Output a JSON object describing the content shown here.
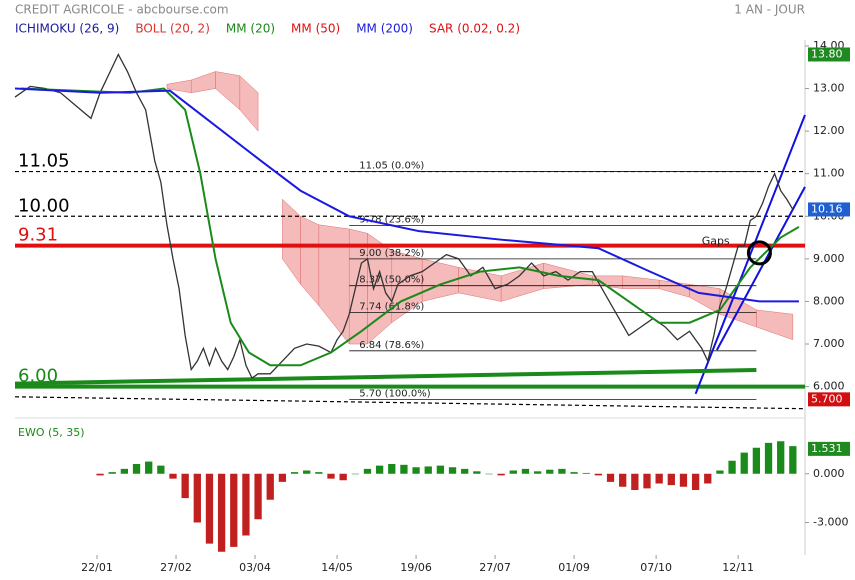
{
  "chart_data": {
    "type": "line",
    "title": "CREDIT AGRICOLE - abcbourse.com",
    "subtitle": "1 AN - JOUR",
    "xlim": [
      0,
      260
    ],
    "xticks": [
      {
        "value": 27,
        "label": "22/01"
      },
      {
        "value": 53,
        "label": "27/02"
      },
      {
        "value": 79,
        "label": "03/04"
      },
      {
        "value": 106,
        "label": "14/05"
      },
      {
        "value": 132,
        "label": "19/06"
      },
      {
        "value": 158,
        "label": "27/07"
      },
      {
        "value": 184,
        "label": "01/09"
      },
      {
        "value": 211,
        "label": "07/10"
      },
      {
        "value": 238,
        "label": "12/11"
      }
    ],
    "ylim": [
      5.45,
      14.14
    ],
    "yticks": [
      {
        "value": 14,
        "label": "14.00"
      },
      {
        "value": 13,
        "label": "13.00"
      },
      {
        "value": 12,
        "label": "12.00"
      },
      {
        "value": 11,
        "label": "11.00"
      },
      {
        "value": 10,
        "label": "10.00"
      },
      {
        "value": 9,
        "label": "9.000"
      },
      {
        "value": 8,
        "label": "8.000"
      },
      {
        "value": 7,
        "label": "7.000"
      },
      {
        "value": 6,
        "label": "6.000"
      }
    ],
    "color": "#333333",
    "x": [
      0,
      5,
      10,
      15,
      20,
      25,
      28,
      32,
      34,
      37,
      40,
      43,
      46,
      48,
      50,
      52,
      54,
      56,
      58,
      60,
      62,
      64,
      66,
      68,
      70,
      72,
      74,
      76,
      78,
      80,
      84,
      88,
      92,
      96,
      100,
      104,
      106,
      108,
      110,
      112,
      114,
      116,
      118,
      120,
      122,
      124,
      126,
      130,
      134,
      138,
      142,
      146,
      150,
      154,
      158,
      162,
      166,
      170,
      174,
      178,
      182,
      186,
      190,
      194,
      198,
      202,
      206,
      210,
      214,
      218,
      222,
      226,
      228,
      230,
      232,
      234,
      236,
      238,
      240,
      242,
      244,
      246,
      248,
      250,
      252,
      254,
      256
    ],
    "values": [
      12.8,
      13.05,
      13.0,
      12.9,
      12.6,
      12.3,
      12.9,
      13.5,
      13.8,
      13.4,
      12.9,
      12.5,
      11.3,
      10.8,
      9.8,
      9.0,
      8.3,
      7.2,
      6.4,
      6.6,
      6.9,
      6.5,
      6.9,
      6.6,
      6.4,
      6.7,
      7.1,
      6.5,
      6.2,
      6.3,
      6.3,
      6.6,
      6.9,
      7.0,
      6.95,
      6.8,
      7.1,
      7.3,
      7.7,
      8.3,
      8.9,
      9.0,
      8.3,
      8.7,
      8.2,
      8.0,
      8.4,
      8.6,
      8.7,
      8.9,
      9.1,
      9.0,
      8.6,
      8.8,
      8.3,
      8.4,
      8.6,
      8.9,
      8.6,
      8.7,
      8.5,
      8.7,
      8.7,
      8.2,
      7.7,
      7.2,
      7.4,
      7.6,
      7.4,
      7.1,
      7.3,
      6.9,
      6.6,
      7.2,
      7.9,
      8.3,
      8.8,
      9.3,
      9.3,
      9.9,
      10.0,
      10.3,
      10.7,
      11.0,
      10.6,
      10.4,
      10.16
    ],
    "series": [
      {
        "name": "ICHIMOKU (26, 9)",
        "color": "#1a1a9a",
        "fill": "#f2a3a3",
        "x": [
          50,
          58,
          66,
          74,
          80,
          84,
          88,
          94,
          100,
          110,
          116,
          124,
          134,
          146,
          160,
          174,
          190,
          200,
          212,
          222,
          232,
          244,
          256
        ],
        "upper": [
          13.1,
          13.2,
          13.4,
          13.3,
          12.9,
          null,
          10.4,
          10.0,
          9.8,
          9.7,
          9.6,
          9.2,
          9.0,
          8.8,
          8.6,
          8.9,
          8.6,
          8.6,
          8.5,
          8.4,
          8.3,
          7.8,
          7.7
        ],
        "lower": [
          13.0,
          12.9,
          13.0,
          12.5,
          12.0,
          null,
          9.0,
          8.4,
          7.9,
          7.0,
          7.0,
          7.5,
          8.0,
          8.2,
          8.0,
          8.3,
          8.4,
          8.3,
          8.3,
          8.1,
          7.7,
          7.4,
          7.1
        ]
      },
      {
        "name": "BOLL (20, 2)",
        "color": "#e03030"
      },
      {
        "name": "MM (20)",
        "color": "#1a8a1a",
        "x": [
          2,
          38,
          49,
          56,
          61,
          66,
          71,
          77,
          84,
          94,
          104,
          114,
          127,
          140,
          153,
          166,
          179,
          192,
          202,
          212,
          222,
          232,
          242,
          252,
          258
        ],
        "values": [
          13.0,
          12.9,
          13.0,
          12.5,
          11.0,
          9.0,
          7.5,
          6.8,
          6.5,
          6.5,
          6.8,
          7.3,
          8.0,
          8.4,
          8.7,
          8.8,
          8.6,
          8.5,
          8.0,
          7.5,
          7.5,
          7.8,
          8.8,
          9.5,
          9.75
        ]
      },
      {
        "name": "MM (50)",
        "color": "#e01010"
      },
      {
        "name": "MM (200)",
        "color": "#1a1ae0",
        "x": [
          0,
          28,
          51,
          61,
          81,
          94,
          110,
          133,
          160,
          192,
          209,
          225,
          245,
          258
        ],
        "values": [
          13.0,
          12.9,
          12.95,
          12.4,
          11.3,
          10.6,
          10.0,
          9.65,
          9.45,
          9.25,
          8.7,
          8.2,
          8.0,
          8.0
        ]
      },
      {
        "name": "SAR (0.02, 0.2)",
        "color": "#e01010"
      }
    ],
    "levels": [
      {
        "value": 11.05,
        "label": "11.05",
        "color": "#000000",
        "dash": true
      },
      {
        "value": 10.0,
        "label": "10.00",
        "color": "#000000",
        "dash": true
      },
      {
        "value": 9.31,
        "label": "9.31",
        "color": "#e01010",
        "dash": false
      },
      {
        "value": 6.0,
        "label": "6.00",
        "color": "#1a8a1a",
        "dash": false
      }
    ],
    "fib_range": [
      110,
      244
    ],
    "fibonacci": [
      {
        "value": 11.05,
        "label": "11.05  (0.0%)"
      },
      {
        "value": 9.78,
        "label": "9.78  (23.6%)"
      },
      {
        "value": 9.0,
        "label": "9.00  (38.2%)"
      },
      {
        "value": 8.37,
        "label": "8.37  (50.0%)"
      },
      {
        "value": 7.74,
        "label": "7.74  (61.8%)"
      },
      {
        "value": 6.84,
        "label": "6.84  (78.6%)"
      },
      {
        "value": 5.7,
        "label": "5.70  (100.0%)"
      }
    ],
    "trendlines": [
      {
        "x": [
          224,
          260
        ],
        "y": [
          5.83,
          12.38
        ],
        "color": "#1010e0",
        "dash": false
      },
      {
        "x": [
          231,
          260
        ],
        "y": [
          6.86,
          10.69
        ],
        "color": "#1010e0",
        "dash": false
      },
      {
        "x": [
          0,
          244
        ],
        "y": [
          6.07,
          6.39
        ],
        "color": "#1a8a1a",
        "dash": false
      },
      {
        "x": [
          0,
          260
        ],
        "y": [
          5.76,
          5.48
        ],
        "color": "#000000",
        "dash": true
      }
    ],
    "annotations": [
      {
        "text": "Gaps",
        "x": 226,
        "y": 9.41
      }
    ],
    "circle": {
      "x": 245,
      "y": 9.14
    },
    "badges": [
      {
        "value": 13.8,
        "label": "13.80",
        "color": "#1f8a1f"
      },
      {
        "value": 10.16,
        "label": "10.16",
        "color": "#1f5fd0"
      },
      {
        "value": 5.7,
        "label": "5.700",
        "color": "#d01010"
      }
    ],
    "ewo": {
      "title": "EWO (5, 35)",
      "ylim": [
        -5,
        3
      ],
      "yticks": [
        {
          "value": 0,
          "label": "0.000"
        },
        {
          "value": -3,
          "label": "-3.000"
        }
      ],
      "up_color": "#1a8a1a",
      "down_color": "#c02020",
      "badge": {
        "value": 1.531,
        "label": "1.531",
        "color": "#1f8a1f"
      },
      "x": [
        0,
        4,
        8,
        12,
        16,
        20,
        24,
        28,
        32,
        36,
        40,
        44,
        48,
        52,
        56,
        60,
        64,
        68,
        72,
        76,
        80,
        84,
        88,
        92,
        96,
        100,
        104,
        108,
        112,
        116,
        120,
        124,
        128,
        132,
        136,
        140,
        144,
        148,
        152,
        156,
        160,
        164,
        168,
        172,
        176,
        180,
        184,
        188,
        192,
        196,
        200,
        204,
        208,
        212,
        216,
        220,
        224,
        228,
        232,
        236,
        240,
        244,
        248,
        252,
        256
      ],
      "values": [
        null,
        null,
        null,
        null,
        null,
        null,
        null,
        -0.1,
        0.1,
        0.3,
        0.6,
        0.75,
        0.5,
        -0.3,
        -1.5,
        -3.0,
        -4.3,
        -4.8,
        -4.5,
        -3.8,
        -2.8,
        -1.6,
        -0.5,
        0.1,
        0.2,
        0.1,
        -0.3,
        -0.4,
        0.0,
        0.3,
        0.5,
        0.6,
        0.55,
        0.4,
        0.45,
        0.5,
        0.4,
        0.3,
        0.15,
        0.0,
        -0.1,
        0.2,
        0.3,
        0.15,
        0.25,
        0.3,
        0.1,
        0.05,
        -0.1,
        -0.5,
        -0.8,
        -1.0,
        -0.9,
        -0.6,
        -0.7,
        -0.8,
        -1.0,
        -0.6,
        0.2,
        0.8,
        1.3,
        1.6,
        1.9,
        2.0,
        1.7
      ]
    }
  }
}
